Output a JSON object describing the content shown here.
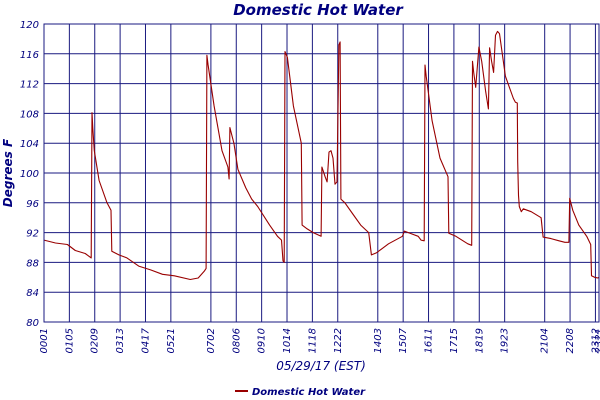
{
  "chart_data": {
    "type": "line",
    "title": "Domestic Hot Water",
    "xlabel": "05/29/17 (EST)",
    "ylabel": "Degrees F",
    "ylim": [
      80,
      120
    ],
    "yticks": [
      80,
      84,
      88,
      92,
      96,
      100,
      104,
      108,
      112,
      116,
      120
    ],
    "xlim": [
      "00:01",
      "23:21"
    ],
    "xticks": [
      "0001",
      "0105",
      "0209",
      "0313",
      "0417",
      "0521",
      "0702",
      "0806",
      "0910",
      "1014",
      "1118",
      "1222",
      "1403",
      "1507",
      "1611",
      "1715",
      "1819",
      "1923",
      "2104",
      "2208",
      "2312",
      "2321"
    ],
    "grid": true,
    "legend_position": "bottom-center",
    "colors": {
      "series": "#990000",
      "grid": "#1a1a80",
      "axis_text": "#00007f",
      "title": "#00007f"
    },
    "series": [
      {
        "name": "Domestic Hot Water",
        "points": [
          [
            "00:01",
            91.0
          ],
          [
            "00:30",
            90.6
          ],
          [
            "01:00",
            90.4
          ],
          [
            "01:20",
            89.6
          ],
          [
            "01:45",
            89.2
          ],
          [
            "02:00",
            88.6
          ],
          [
            "02:02",
            108.1
          ],
          [
            "02:04",
            106.0
          ],
          [
            "02:08",
            103.0
          ],
          [
            "02:20",
            99.0
          ],
          [
            "02:40",
            96.0
          ],
          [
            "02:50",
            95.0
          ],
          [
            "02:52",
            89.5
          ],
          [
            "03:10",
            89.0
          ],
          [
            "03:30",
            88.6
          ],
          [
            "04:00",
            87.5
          ],
          [
            "04:30",
            87.0
          ],
          [
            "05:00",
            86.4
          ],
          [
            "05:30",
            86.2
          ],
          [
            "06:10",
            85.7
          ],
          [
            "06:30",
            85.9
          ],
          [
            "06:45",
            86.8
          ],
          [
            "06:50",
            87.2
          ],
          [
            "06:52",
            115.8
          ],
          [
            "06:55",
            114.5
          ],
          [
            "07:10",
            109.0
          ],
          [
            "07:30",
            103.0
          ],
          [
            "07:45",
            100.8
          ],
          [
            "07:48",
            99.2
          ],
          [
            "07:50",
            106.1
          ],
          [
            "08:00",
            104.0
          ],
          [
            "08:10",
            100.5
          ],
          [
            "08:30",
            98.0
          ],
          [
            "08:45",
            96.5
          ],
          [
            "09:00",
            95.5
          ],
          [
            "09:30",
            93.0
          ],
          [
            "09:50",
            91.5
          ],
          [
            "10:00",
            91.0
          ],
          [
            "10:04",
            88.2
          ],
          [
            "10:07",
            88.0
          ],
          [
            "10:09",
            116.3
          ],
          [
            "10:15",
            115.5
          ],
          [
            "10:30",
            109.0
          ],
          [
            "10:50",
            104.0
          ],
          [
            "10:52",
            93.0
          ],
          [
            "11:05",
            92.5
          ],
          [
            "11:20",
            92.0
          ],
          [
            "11:40",
            91.5
          ],
          [
            "11:42",
            100.8
          ],
          [
            "11:50",
            99.5
          ],
          [
            "11:55",
            98.8
          ],
          [
            "12:00",
            102.8
          ],
          [
            "12:05",
            103.0
          ],
          [
            "12:10",
            102.0
          ],
          [
            "12:15",
            98.5
          ],
          [
            "12:20",
            98.8
          ],
          [
            "12:25",
            117.2
          ],
          [
            "12:28",
            117.6
          ],
          [
            "12:30",
            96.5
          ],
          [
            "12:40",
            96.0
          ],
          [
            "13:00",
            94.5
          ],
          [
            "13:20",
            93.0
          ],
          [
            "13:40",
            92.0
          ],
          [
            "13:47",
            89.0
          ],
          [
            "14:00",
            89.3
          ],
          [
            "14:30",
            90.5
          ],
          [
            "15:05",
            91.5
          ],
          [
            "15:10",
            92.2
          ],
          [
            "15:30",
            91.8
          ],
          [
            "15:45",
            91.5
          ],
          [
            "15:52",
            91.0
          ],
          [
            "16:00",
            90.9
          ],
          [
            "16:02",
            114.5
          ],
          [
            "16:05",
            113.0
          ],
          [
            "16:20",
            107.0
          ],
          [
            "16:40",
            102.0
          ],
          [
            "17:00",
            99.5
          ],
          [
            "17:02",
            91.9
          ],
          [
            "17:20",
            91.5
          ],
          [
            "17:50",
            90.5
          ],
          [
            "18:00",
            90.3
          ],
          [
            "18:02",
            115.0
          ],
          [
            "18:05",
            113.5
          ],
          [
            "18:10",
            111.5
          ],
          [
            "18:18",
            116.9
          ],
          [
            "18:25",
            115.0
          ],
          [
            "18:35",
            111.0
          ],
          [
            "18:42",
            108.6
          ],
          [
            "18:45",
            116.8
          ],
          [
            "18:50",
            115.0
          ],
          [
            "18:55",
            113.5
          ],
          [
            "19:00",
            118.5
          ],
          [
            "19:05",
            119.0
          ],
          [
            "19:10",
            118.7
          ],
          [
            "19:25",
            113.0
          ],
          [
            "19:45",
            110.0
          ],
          [
            "19:50",
            109.5
          ],
          [
            "19:55",
            109.4
          ],
          [
            "19:56",
            101.5
          ],
          [
            "19:58",
            97.0
          ],
          [
            "20:00",
            95.5
          ],
          [
            "20:05",
            94.8
          ],
          [
            "20:10",
            95.2
          ],
          [
            "20:30",
            94.8
          ],
          [
            "20:55",
            94.0
          ],
          [
            "21:00",
            91.4
          ],
          [
            "21:20",
            91.2
          ],
          [
            "21:40",
            90.9
          ],
          [
            "21:55",
            90.7
          ],
          [
            "22:05",
            90.7
          ],
          [
            "22:07",
            96.6
          ],
          [
            "22:15",
            95.0
          ],
          [
            "22:30",
            93.0
          ],
          [
            "22:50",
            91.5
          ],
          [
            "23:00",
            90.4
          ],
          [
            "23:02",
            86.2
          ],
          [
            "23:10",
            86.0
          ],
          [
            "23:18",
            85.9
          ],
          [
            "23:21",
            86.0
          ]
        ]
      }
    ]
  }
}
